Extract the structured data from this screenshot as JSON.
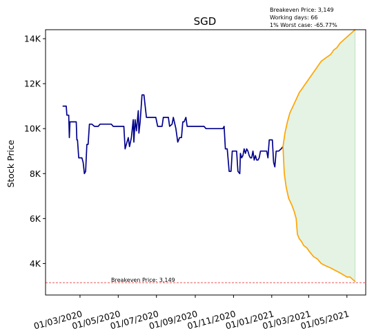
{
  "chart_data": {
    "type": "line",
    "title": "SGD",
    "ylabel": "Stock Price",
    "xlabel": "",
    "ylim": [
      2600,
      14400
    ],
    "xlim": [
      "2020-01-06",
      "2021-05-31"
    ],
    "y_ticks": [
      4000,
      6000,
      8000,
      10000,
      12000,
      14000
    ],
    "y_tick_labels": [
      "4K",
      "6K",
      "8K",
      "10K",
      "12K",
      "14K"
    ],
    "x_ticks": [
      "2020-03-01",
      "2020-05-01",
      "2020-07-01",
      "2020-09-01",
      "2020-11-01",
      "2021-01-01",
      "2021-03-01",
      "2021-05-01"
    ],
    "x_tick_labels": [
      "01/03/2020",
      "01/05/2020",
      "01/07/2020",
      "01/09/2020",
      "01/11/2020",
      "01/01/2021",
      "01/03/2021",
      "01/05/2021"
    ],
    "info_lines": [
      "Breakeven Price: 3,149",
      "Working days: 66",
      "1% Worst case: -65.77%"
    ],
    "breakeven": {
      "value": 3149,
      "label": "Breakeven Price: 3,149",
      "color": "#e31a1c"
    },
    "historical": {
      "color": "#00008b",
      "points": [
        [
          "2020-02-03",
          11000
        ],
        [
          "2020-02-08",
          11000
        ],
        [
          "2020-02-09",
          10600
        ],
        [
          "2020-02-12",
          10600
        ],
        [
          "2020-02-13",
          9600
        ],
        [
          "2020-02-14",
          10300
        ],
        [
          "2020-02-24",
          10300
        ],
        [
          "2020-02-25",
          9500
        ],
        [
          "2020-02-26",
          9500
        ],
        [
          "2020-02-28",
          8700
        ],
        [
          "2020-03-04",
          8700
        ],
        [
          "2020-03-06",
          8500
        ],
        [
          "2020-03-08",
          8000
        ],
        [
          "2020-03-10",
          8100
        ],
        [
          "2020-03-12",
          9300
        ],
        [
          "2020-03-14",
          9300
        ],
        [
          "2020-03-16",
          10200
        ],
        [
          "2020-03-20",
          10200
        ],
        [
          "2020-03-24",
          10100
        ],
        [
          "2020-03-30",
          10100
        ],
        [
          "2020-04-02",
          10200
        ],
        [
          "2020-04-20",
          10200
        ],
        [
          "2020-04-23",
          10100
        ],
        [
          "2020-05-10",
          10100
        ],
        [
          "2020-05-12",
          9100
        ],
        [
          "2020-05-14",
          9300
        ],
        [
          "2020-05-17",
          9600
        ],
        [
          "2020-05-19",
          9200
        ],
        [
          "2020-05-22",
          9600
        ],
        [
          "2020-05-25",
          10400
        ],
        [
          "2020-05-26",
          9400
        ],
        [
          "2020-05-28",
          10400
        ],
        [
          "2020-05-30",
          9900
        ],
        [
          "2020-06-02",
          10800
        ],
        [
          "2020-06-03",
          9800
        ],
        [
          "2020-06-05",
          10300
        ],
        [
          "2020-06-08",
          11500
        ],
        [
          "2020-06-11",
          11500
        ],
        [
          "2020-06-15",
          10500
        ],
        [
          "2020-06-30",
          10500
        ],
        [
          "2020-07-03",
          10100
        ],
        [
          "2020-07-10",
          10100
        ],
        [
          "2020-07-12",
          10500
        ],
        [
          "2020-07-20",
          10500
        ],
        [
          "2020-07-22",
          10100
        ],
        [
          "2020-07-26",
          10200
        ],
        [
          "2020-07-28",
          10500
        ],
        [
          "2020-08-01",
          10000
        ],
        [
          "2020-08-04",
          9400
        ],
        [
          "2020-08-07",
          9600
        ],
        [
          "2020-08-10",
          9600
        ],
        [
          "2020-08-12",
          10300
        ],
        [
          "2020-08-14",
          10300
        ],
        [
          "2020-08-17",
          10500
        ],
        [
          "2020-08-19",
          10100
        ],
        [
          "2020-09-15",
          10100
        ],
        [
          "2020-09-18",
          10000
        ],
        [
          "2020-10-15",
          10000
        ],
        [
          "2020-10-17",
          10100
        ],
        [
          "2020-10-19",
          9100
        ],
        [
          "2020-10-22",
          9100
        ],
        [
          "2020-10-25",
          8100
        ],
        [
          "2020-10-28",
          8100
        ],
        [
          "2020-10-30",
          9000
        ],
        [
          "2020-11-06",
          9000
        ],
        [
          "2020-11-08",
          8100
        ],
        [
          "2020-11-11",
          8000
        ],
        [
          "2020-11-12",
          8900
        ],
        [
          "2020-11-14",
          8700
        ],
        [
          "2020-11-16",
          8800
        ],
        [
          "2020-11-18",
          9100
        ],
        [
          "2020-11-20",
          8900
        ],
        [
          "2020-11-22",
          9100
        ],
        [
          "2020-11-24",
          9000
        ],
        [
          "2020-11-26",
          8800
        ],
        [
          "2020-11-28",
          8700
        ],
        [
          "2020-11-30",
          8700
        ],
        [
          "2020-12-02",
          9000
        ],
        [
          "2020-12-04",
          8600
        ],
        [
          "2020-12-06",
          8800
        ],
        [
          "2020-12-08",
          8600
        ],
        [
          "2020-12-10",
          8600
        ],
        [
          "2020-12-12",
          8700
        ],
        [
          "2020-12-14",
          9000
        ],
        [
          "2020-12-22",
          9000
        ],
        [
          "2020-12-24",
          9000
        ],
        [
          "2020-12-26",
          8700
        ],
        [
          "2020-12-28",
          9500
        ],
        [
          "2021-01-02",
          9500
        ],
        [
          "2021-01-04",
          8500
        ],
        [
          "2021-01-06",
          8300
        ],
        [
          "2021-01-08",
          9000
        ],
        [
          "2021-01-12",
          9000
        ],
        [
          "2021-01-16",
          9100
        ],
        [
          "2021-01-19",
          9200
        ]
      ]
    },
    "simulation_upper": {
      "color": "#ffa500",
      "points": [
        [
          "2021-01-19",
          9200
        ],
        [
          "2021-01-22",
          9800
        ],
        [
          "2021-01-26",
          10300
        ],
        [
          "2021-01-30",
          10700
        ],
        [
          "2021-02-04",
          11000
        ],
        [
          "2021-02-09",
          11300
        ],
        [
          "2021-02-14",
          11600
        ],
        [
          "2021-02-19",
          11800
        ],
        [
          "2021-02-24",
          12000
        ],
        [
          "2021-03-01",
          12200
        ],
        [
          "2021-03-06",
          12400
        ],
        [
          "2021-03-11",
          12600
        ],
        [
          "2021-03-16",
          12800
        ],
        [
          "2021-03-21",
          13000
        ],
        [
          "2021-03-26",
          13100
        ],
        [
          "2021-03-31",
          13200
        ],
        [
          "2021-04-05",
          13300
        ],
        [
          "2021-04-10",
          13500
        ],
        [
          "2021-04-15",
          13600
        ],
        [
          "2021-04-20",
          13800
        ],
        [
          "2021-04-24",
          13900
        ],
        [
          "2021-04-28",
          14000
        ],
        [
          "2021-05-02",
          14100
        ],
        [
          "2021-05-06",
          14200
        ],
        [
          "2021-05-10",
          14300
        ],
        [
          "2021-05-14",
          14400
        ]
      ]
    },
    "simulation_lower": {
      "color": "#ffa500",
      "points": [
        [
          "2021-01-19",
          9200
        ],
        [
          "2021-01-21",
          8000
        ],
        [
          "2021-01-24",
          7400
        ],
        [
          "2021-01-28",
          6900
        ],
        [
          "2021-02-02",
          6600
        ],
        [
          "2021-02-06",
          6300
        ],
        [
          "2021-02-09",
          6000
        ],
        [
          "2021-02-11",
          5300
        ],
        [
          "2021-02-14",
          5100
        ],
        [
          "2021-02-17",
          5000
        ],
        [
          "2021-02-21",
          4800
        ],
        [
          "2021-02-26",
          4700
        ],
        [
          "2021-03-03",
          4500
        ],
        [
          "2021-03-09",
          4300
        ],
        [
          "2021-03-15",
          4200
        ],
        [
          "2021-03-21",
          4000
        ],
        [
          "2021-03-28",
          3900
        ],
        [
          "2021-04-05",
          3800
        ],
        [
          "2021-04-12",
          3700
        ],
        [
          "2021-04-19",
          3600
        ],
        [
          "2021-04-25",
          3500
        ],
        [
          "2021-05-01",
          3400
        ],
        [
          "2021-05-06",
          3400
        ],
        [
          "2021-05-10",
          3300
        ],
        [
          "2021-05-14",
          3200
        ]
      ]
    },
    "band_fill_color": "#2ca02c"
  }
}
